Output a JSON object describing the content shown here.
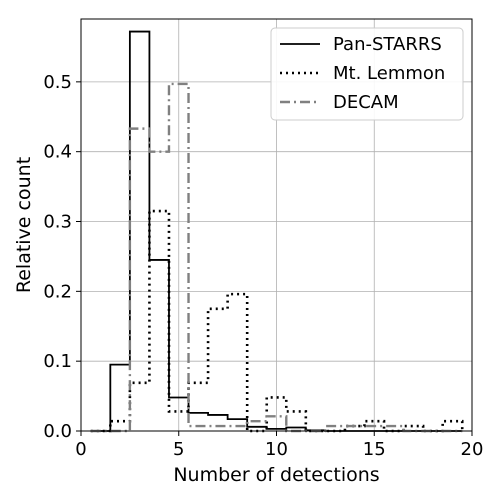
{
  "chart_data": {
    "type": "step-histogram",
    "xlabel": "Number of detections",
    "ylabel": "Relative count",
    "xlim": [
      0,
      20
    ],
    "ylim": [
      0,
      0.59
    ],
    "xticks": [
      0,
      5,
      10,
      15,
      20
    ],
    "yticks": [
      0.0,
      0.1,
      0.2,
      0.3,
      0.4,
      0.5
    ],
    "grid": true,
    "legend_position": "top-right",
    "bin_edges": [
      0.5,
      1.5,
      2.5,
      3.5,
      4.5,
      5.5,
      6.5,
      7.5,
      8.5,
      9.5,
      10.5,
      11.5,
      12.5,
      13.5,
      14.5,
      15.5,
      16.5,
      17.5,
      18.5,
      19.5
    ],
    "series": [
      {
        "name": "Pan-STARRS",
        "style": "solid",
        "color": "#000000",
        "values": [
          0.0,
          0.095,
          0.572,
          0.245,
          0.048,
          0.026,
          0.023,
          0.017,
          0.006,
          0.003,
          0.005,
          0.001,
          0.0,
          0.0,
          0.0,
          0.0,
          0.0,
          0.0,
          0.0
        ]
      },
      {
        "name": "Mt. Lemmon",
        "style": "dotted",
        "color": "#000000",
        "values": [
          0.0,
          0.014,
          0.069,
          0.315,
          0.028,
          0.069,
          0.175,
          0.196,
          0.0,
          0.048,
          0.028,
          0.0,
          0.0,
          0.007,
          0.014,
          0.0,
          0.007,
          0.0,
          0.014
        ]
      },
      {
        "name": "DECAM",
        "style": "dashdot",
        "color": "#808080",
        "values": [
          0.0,
          0.0,
          0.433,
          0.4,
          0.497,
          0.007,
          0.007,
          0.007,
          0.014,
          0.021,
          0.0,
          0.0,
          0.007,
          0.007,
          0.007,
          0.007,
          0.0,
          0.0,
          0.0
        ]
      }
    ]
  }
}
